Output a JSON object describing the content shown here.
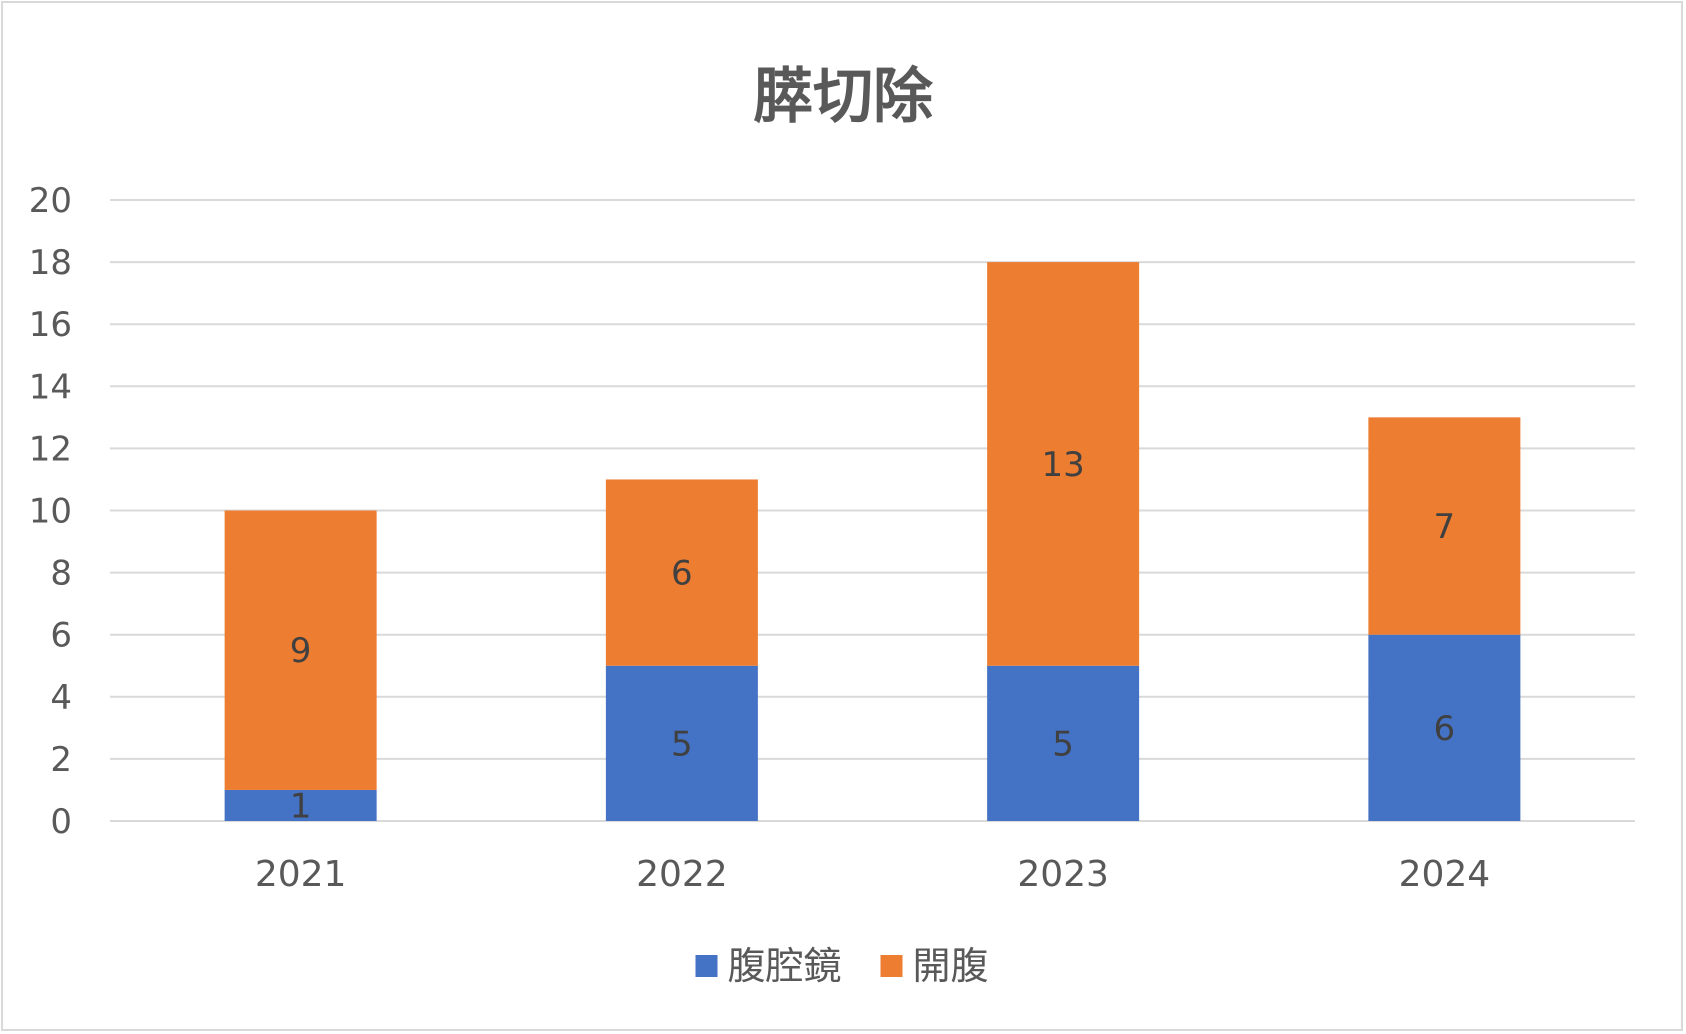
{
  "chart_data": {
    "type": "bar",
    "stacked": true,
    "title": "膵切除",
    "xlabel": "",
    "ylabel": "",
    "categories": [
      "2021",
      "2022",
      "2023",
      "2024"
    ],
    "series": [
      {
        "name": "腹腔鏡",
        "values": [
          1,
          5,
          5,
          6
        ],
        "color": "#4472C4"
      },
      {
        "name": "開腹",
        "values": [
          9,
          6,
          13,
          7
        ],
        "color": "#ED7D31"
      }
    ],
    "ylim": [
      0,
      20
    ],
    "yticks": [
      "0",
      "2",
      "4",
      "6",
      "8",
      "10",
      "12",
      "14",
      "16",
      "18",
      "20"
    ],
    "grid": true,
    "legend_position": "bottom",
    "data_labels": true,
    "colors": {
      "gridline": "#d9d9d9",
      "text": "#595959",
      "label": "#404040"
    }
  }
}
